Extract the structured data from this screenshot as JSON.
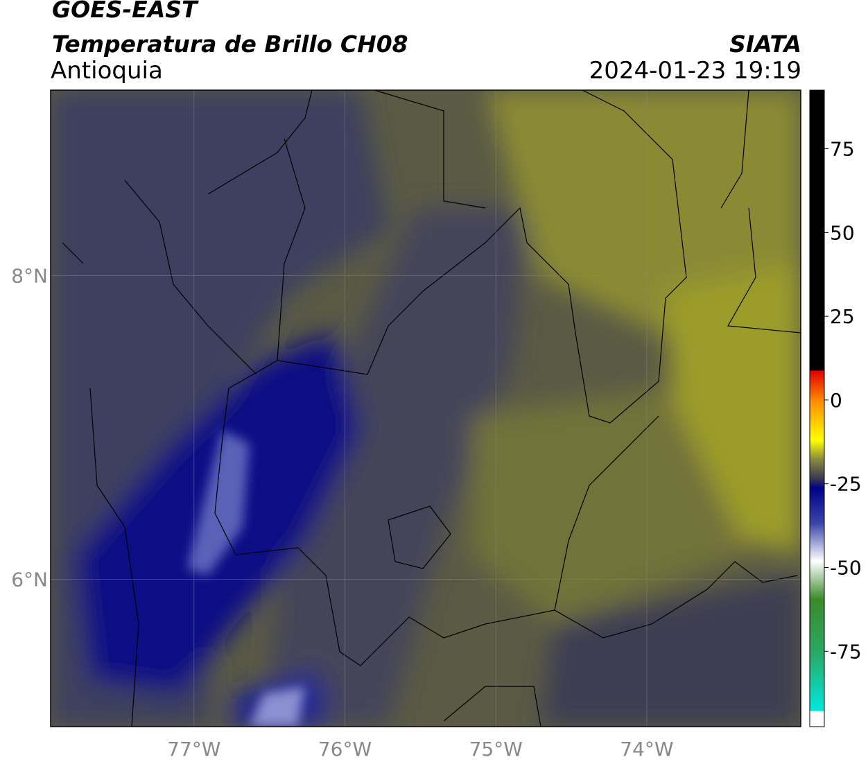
{
  "header": {
    "title": "GOES-EAST",
    "subtitle": "Temperatura de Brillo CH08",
    "region": "Antioquia",
    "source": "SIATA",
    "datetime": "2024-01-23 19:19"
  },
  "map": {
    "xlim": [
      -77.95,
      -72.98
    ],
    "ylim": [
      5.03,
      9.22
    ],
    "xticks": [
      {
        "value": -77,
        "label": "77°W"
      },
      {
        "value": -76,
        "label": "76°W"
      },
      {
        "value": -75,
        "label": "75°W"
      },
      {
        "value": -74,
        "label": "74°W"
      }
    ],
    "yticks": [
      {
        "value": 8,
        "label": "8°N"
      },
      {
        "value": 6,
        "label": "6°N"
      }
    ]
  },
  "colorbar": {
    "lim": [
      -97.5,
      92.5
    ],
    "ticks": [
      75,
      50,
      25,
      0,
      -25,
      -50,
      -75
    ]
  }
}
